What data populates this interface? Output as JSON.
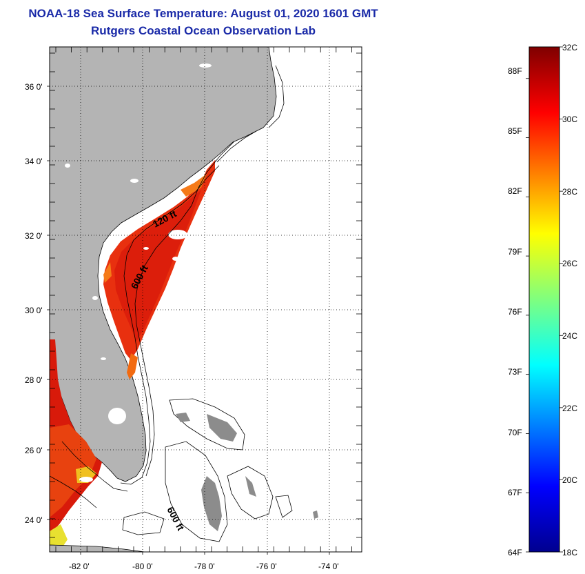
{
  "header": {
    "title": "NOAA-18 Sea Surface Temperature:  August 01, 2020 1601 GMT",
    "subtitle": "Rutgers Coastal Ocean Observation Lab"
  },
  "map": {
    "lat_labels": [
      "36 0'",
      "34 0'",
      "32 0'",
      "30 0'",
      "28 0'",
      "26 0'",
      "24 0'"
    ],
    "lon_labels": [
      "-82 0'",
      "-80 0'",
      "-78 0'",
      "-76 0'",
      "-74 0'"
    ],
    "contour_labels": [
      "120 ft",
      "600 ft",
      "600 ft"
    ],
    "colors": {
      "land": "#b4b4b4",
      "ocean": "#ffffff",
      "sst_warm": "#e8300f",
      "sst_hot": "#d81a0a",
      "sst_orange": "#f26a10"
    }
  },
  "colorbar": {
    "fahrenheit_labels": [
      "88F",
      "85F",
      "82F",
      "79F",
      "76F",
      "73F",
      "70F",
      "67F",
      "64F"
    ],
    "celsius_labels": [
      "32C",
      "30C",
      "28C",
      "26C",
      "24C",
      "22C",
      "20C",
      "18C"
    ],
    "range_c": [
      18,
      32
    ],
    "range_f": [
      64,
      89.6
    ]
  }
}
